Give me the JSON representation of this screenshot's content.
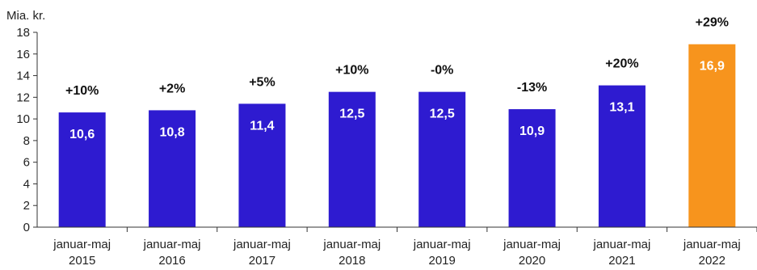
{
  "chart_data": {
    "type": "bar",
    "ylabel": "Mia. kr.",
    "ylim": [
      0,
      18
    ],
    "ytick_step": 2,
    "grid": false,
    "categories": [
      [
        "januar-maj",
        "2015"
      ],
      [
        "januar-maj",
        "2016"
      ],
      [
        "januar-maj",
        "2017"
      ],
      [
        "januar-maj",
        "2018"
      ],
      [
        "januar-maj",
        "2019"
      ],
      [
        "januar-maj",
        "2020"
      ],
      [
        "januar-maj",
        "2021"
      ],
      [
        "januar-maj",
        "2022"
      ]
    ],
    "values": [
      10.6,
      10.8,
      11.4,
      12.5,
      12.5,
      10.9,
      13.1,
      16.9
    ],
    "value_labels": [
      "10,6",
      "10,8",
      "11,4",
      "12,5",
      "12,5",
      "10,9",
      "13,1",
      "16,9"
    ],
    "change_labels": [
      "+10%",
      "+2%",
      "+5%",
      "+10%",
      "-0%",
      "-13%",
      "+20%",
      "+29%"
    ],
    "colors": {
      "default": "#2E1BD0",
      "highlight": "#F7941D",
      "highlight_index": 7
    }
  }
}
